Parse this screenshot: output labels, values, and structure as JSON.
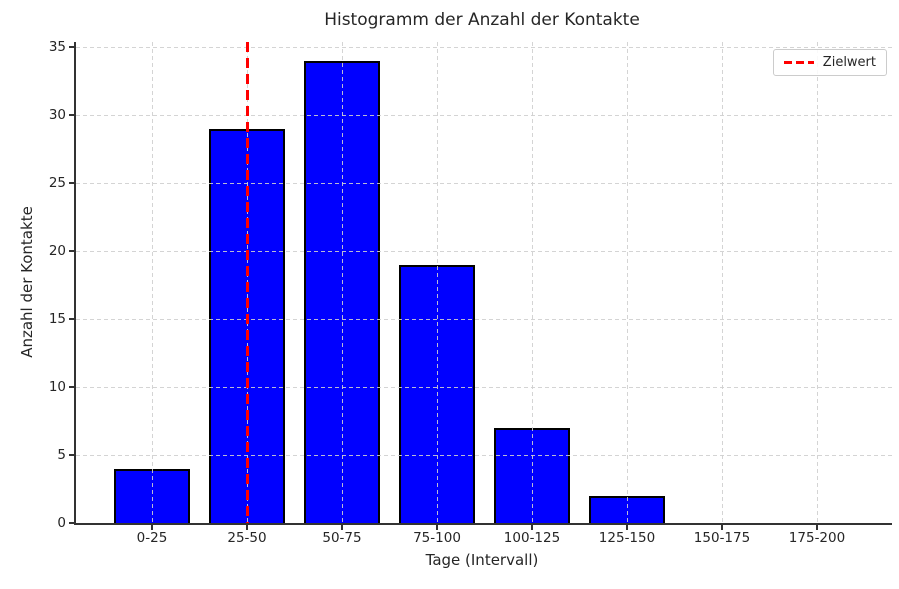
{
  "chart_data": {
    "type": "bar",
    "title": "Histogramm der Anzahl der Kontakte",
    "xlabel": "Tage (Intervall)",
    "ylabel": "Anzahl der Kontakte",
    "categories": [
      "0-25",
      "25-50",
      "50-75",
      "75-100",
      "100-125",
      "125-150",
      "150-175",
      "175-200"
    ],
    "values": [
      4,
      29,
      34,
      19,
      7,
      2,
      0,
      0
    ],
    "yticks": [
      0,
      5,
      10,
      15,
      20,
      25,
      30,
      35
    ],
    "ylim": [
      0,
      35.4
    ],
    "grid": true,
    "bar_color": "#0000ff",
    "bar_edge_color": "#000000",
    "target_line": {
      "label": "Zielwert",
      "color": "#ff0000",
      "style": "dashed",
      "at_category_index": 1
    },
    "legend": {
      "position": "upper right",
      "entries": [
        {
          "label": "Zielwert",
          "color": "#ff0000",
          "style": "dashed"
        }
      ]
    }
  }
}
